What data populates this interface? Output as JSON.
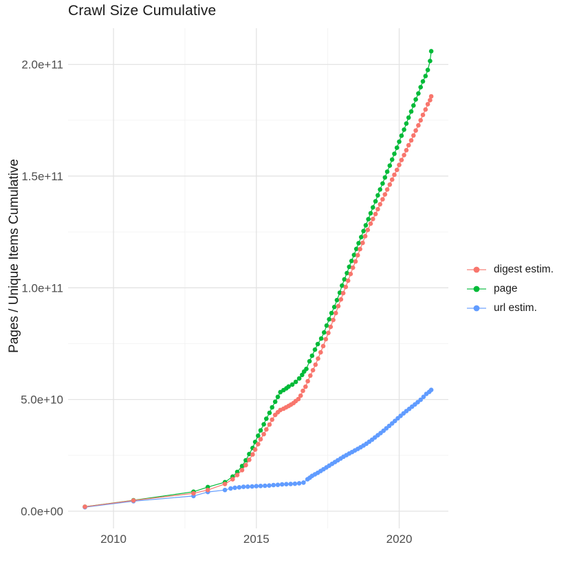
{
  "chart_data": {
    "type": "line",
    "title": "Crawl Size Cumulative",
    "xlabel": "",
    "ylabel": "Pages / Unique Items Cumulative",
    "value_unit": "billions of pages / unique items (1e9)",
    "x_unit": "year",
    "xlim": [
      2008.41,
      2021.72
    ],
    "ylim": [
      -7.7,
      216.2
    ],
    "x_ticks": [
      2010,
      2015,
      2020
    ],
    "x_tick_labels": [
      "2010",
      "2015",
      "2020"
    ],
    "x_minor_ticks": [
      2012.5,
      2017.5
    ],
    "y_ticks": [
      0,
      50,
      100,
      150,
      200
    ],
    "y_tick_labels": [
      "0.0e+00",
      "5.0e+10",
      "1.0e+11",
      "1.5e+11",
      "2.0e+11"
    ],
    "y_minor_ticks": [
      25,
      75,
      125,
      175
    ],
    "grid": true,
    "legend_position": "right",
    "draw_order": [
      1,
      2,
      0
    ],
    "colors": {
      "major_grid": "#e3e3e3",
      "minor_grid": "#f1f1f1",
      "tick_label": "#4d4d4d",
      "text": "#1a1a1a",
      "background": "#ffffff"
    },
    "series": [
      {
        "name": "digest estim.",
        "color": "#F8766D",
        "points": [
          [
            2009.0,
            2.0
          ],
          [
            2010.7,
            4.8
          ],
          [
            2012.8,
            8.0
          ],
          [
            2013.3,
            9.5
          ],
          [
            2013.9,
            12.2
          ],
          [
            2014.17,
            14.3
          ],
          [
            2014.33,
            16.2
          ],
          [
            2014.5,
            18.4
          ],
          [
            2014.63,
            20.6
          ],
          [
            2014.75,
            23.0
          ],
          [
            2014.87,
            25.4
          ],
          [
            2014.96,
            27.6
          ],
          [
            2015.06,
            30.0
          ],
          [
            2015.15,
            32.2
          ],
          [
            2015.26,
            34.5
          ],
          [
            2015.35,
            36.6
          ],
          [
            2015.46,
            38.8
          ],
          [
            2015.55,
            41.0
          ],
          [
            2015.66,
            43.1
          ],
          [
            2015.75,
            44.3
          ],
          [
            2015.84,
            45.3
          ],
          [
            2015.95,
            45.9
          ],
          [
            2016.04,
            46.5
          ],
          [
            2016.13,
            47.1
          ],
          [
            2016.21,
            47.7
          ],
          [
            2016.3,
            48.4
          ],
          [
            2016.38,
            49.3
          ],
          [
            2016.47,
            50.2
          ],
          [
            2016.55,
            51.7
          ],
          [
            2016.63,
            53.9
          ],
          [
            2016.72,
            55.7
          ],
          [
            2016.8,
            58.2
          ],
          [
            2016.89,
            60.7
          ],
          [
            2016.98,
            63.1
          ],
          [
            2017.07,
            65.6
          ],
          [
            2017.16,
            68.3
          ],
          [
            2017.25,
            71.1
          ],
          [
            2017.34,
            73.9
          ],
          [
            2017.43,
            77.0
          ],
          [
            2017.52,
            79.8
          ],
          [
            2017.6,
            82.5
          ],
          [
            2017.69,
            85.6
          ],
          [
            2017.78,
            88.7
          ],
          [
            2017.87,
            91.8
          ],
          [
            2017.96,
            94.8
          ],
          [
            2018.04,
            97.6
          ],
          [
            2018.13,
            100.4
          ],
          [
            2018.21,
            103.2
          ],
          [
            2018.3,
            106.2
          ],
          [
            2018.38,
            109.0
          ],
          [
            2018.47,
            111.8
          ],
          [
            2018.55,
            114.6
          ],
          [
            2018.63,
            117.3
          ],
          [
            2018.72,
            120.1
          ],
          [
            2018.81,
            123.1
          ],
          [
            2018.9,
            125.9
          ],
          [
            2019.0,
            128.7
          ],
          [
            2019.08,
            130.8
          ],
          [
            2019.17,
            133.0
          ],
          [
            2019.25,
            135.2
          ],
          [
            2019.33,
            137.4
          ],
          [
            2019.42,
            139.6
          ],
          [
            2019.5,
            141.8
          ],
          [
            2019.58,
            144.0
          ],
          [
            2019.67,
            146.2
          ],
          [
            2019.75,
            148.4
          ],
          [
            2019.83,
            150.6
          ],
          [
            2019.92,
            152.8
          ],
          [
            2020.0,
            155.0
          ],
          [
            2020.08,
            157.2
          ],
          [
            2020.17,
            159.4
          ],
          [
            2020.25,
            161.6
          ],
          [
            2020.33,
            163.8
          ],
          [
            2020.42,
            166.0
          ],
          [
            2020.5,
            168.2
          ],
          [
            2020.58,
            170.4
          ],
          [
            2020.67,
            172.7
          ],
          [
            2020.75,
            175.0
          ],
          [
            2020.83,
            177.4
          ],
          [
            2020.92,
            179.8
          ],
          [
            2021.0,
            182.2
          ],
          [
            2021.08,
            184.0
          ],
          [
            2021.12,
            185.7
          ]
        ]
      },
      {
        "name": "page",
        "color": "#00BA38",
        "points": [
          [
            2009.0,
            2.0
          ],
          [
            2010.7,
            4.9
          ],
          [
            2012.8,
            8.7
          ],
          [
            2013.3,
            10.8
          ],
          [
            2013.9,
            13.0
          ],
          [
            2014.17,
            15.5
          ],
          [
            2014.33,
            17.6
          ],
          [
            2014.5,
            20.2
          ],
          [
            2014.63,
            22.8
          ],
          [
            2014.75,
            25.6
          ],
          [
            2014.87,
            28.3
          ],
          [
            2014.96,
            31.0
          ],
          [
            2015.06,
            33.8
          ],
          [
            2015.15,
            36.2
          ],
          [
            2015.26,
            38.9
          ],
          [
            2015.35,
            41.4
          ],
          [
            2015.46,
            44.0
          ],
          [
            2015.55,
            46.5
          ],
          [
            2015.66,
            49.0
          ],
          [
            2015.75,
            51.2
          ],
          [
            2015.84,
            53.3
          ],
          [
            2015.95,
            54.2
          ],
          [
            2016.05,
            55.0
          ],
          [
            2016.13,
            55.8
          ],
          [
            2016.26,
            56.7
          ],
          [
            2016.38,
            57.9
          ],
          [
            2016.5,
            59.4
          ],
          [
            2016.6,
            61.0
          ],
          [
            2016.67,
            62.5
          ],
          [
            2016.75,
            63.7
          ],
          [
            2016.86,
            67.1
          ],
          [
            2016.95,
            69.6
          ],
          [
            2017.05,
            72.3
          ],
          [
            2017.15,
            74.8
          ],
          [
            2017.27,
            77.3
          ],
          [
            2017.37,
            80.0
          ],
          [
            2017.46,
            83.1
          ],
          [
            2017.55,
            85.9
          ],
          [
            2017.63,
            88.7
          ],
          [
            2017.73,
            91.4
          ],
          [
            2017.82,
            94.5
          ],
          [
            2017.92,
            97.8
          ],
          [
            2018.0,
            101.0
          ],
          [
            2018.08,
            103.8
          ],
          [
            2018.17,
            106.6
          ],
          [
            2018.25,
            109.4
          ],
          [
            2018.33,
            112.0
          ],
          [
            2018.42,
            114.7
          ],
          [
            2018.5,
            117.4
          ],
          [
            2018.58,
            120.0
          ],
          [
            2018.67,
            122.7
          ],
          [
            2018.75,
            125.4
          ],
          [
            2018.83,
            128.0
          ],
          [
            2018.92,
            130.7
          ],
          [
            2019.0,
            133.4
          ],
          [
            2019.08,
            136.0
          ],
          [
            2019.17,
            138.7
          ],
          [
            2019.25,
            141.4
          ],
          [
            2019.33,
            144.0
          ],
          [
            2019.42,
            146.7
          ],
          [
            2019.5,
            149.4
          ],
          [
            2019.58,
            152.0
          ],
          [
            2019.67,
            154.7
          ],
          [
            2019.75,
            157.4
          ],
          [
            2019.83,
            160.0
          ],
          [
            2019.92,
            162.7
          ],
          [
            2020.0,
            165.4
          ],
          [
            2020.08,
            168.1
          ],
          [
            2020.17,
            170.8
          ],
          [
            2020.25,
            173.5
          ],
          [
            2020.33,
            176.2
          ],
          [
            2020.42,
            178.9
          ],
          [
            2020.5,
            181.6
          ],
          [
            2020.58,
            184.3
          ],
          [
            2020.67,
            187.0
          ],
          [
            2020.75,
            189.8
          ],
          [
            2020.83,
            192.4
          ],
          [
            2020.92,
            194.8
          ],
          [
            2021.0,
            197.5
          ],
          [
            2021.08,
            201.5
          ],
          [
            2021.12,
            205.9
          ]
        ]
      },
      {
        "name": "url estim.",
        "color": "#619CFF",
        "points": [
          [
            2009.0,
            1.8
          ],
          [
            2010.7,
            4.5
          ],
          [
            2012.8,
            6.8
          ],
          [
            2013.3,
            8.6
          ],
          [
            2013.9,
            9.5
          ],
          [
            2014.1,
            10.2
          ],
          [
            2014.25,
            10.5
          ],
          [
            2014.4,
            10.7
          ],
          [
            2014.55,
            10.9
          ],
          [
            2014.7,
            11.0
          ],
          [
            2014.85,
            11.1
          ],
          [
            2015.0,
            11.2
          ],
          [
            2015.15,
            11.3
          ],
          [
            2015.3,
            11.4
          ],
          [
            2015.45,
            11.5
          ],
          [
            2015.6,
            11.7
          ],
          [
            2015.75,
            11.8
          ],
          [
            2015.9,
            12.0
          ],
          [
            2016.05,
            12.1
          ],
          [
            2016.2,
            12.2
          ],
          [
            2016.35,
            12.3
          ],
          [
            2016.5,
            12.5
          ],
          [
            2016.65,
            12.8
          ],
          [
            2016.79,
            14.3
          ],
          [
            2016.87,
            15.0
          ],
          [
            2016.95,
            15.8
          ],
          [
            2017.05,
            16.5
          ],
          [
            2017.15,
            17.2
          ],
          [
            2017.25,
            18.0
          ],
          [
            2017.35,
            18.8
          ],
          [
            2017.45,
            19.6
          ],
          [
            2017.55,
            20.4
          ],
          [
            2017.65,
            21.2
          ],
          [
            2017.75,
            22.0
          ],
          [
            2017.85,
            22.8
          ],
          [
            2017.95,
            23.6
          ],
          [
            2018.05,
            24.4
          ],
          [
            2018.15,
            25.1
          ],
          [
            2018.25,
            25.8
          ],
          [
            2018.35,
            26.5
          ],
          [
            2018.45,
            27.2
          ],
          [
            2018.55,
            27.9
          ],
          [
            2018.65,
            28.6
          ],
          [
            2018.75,
            29.4
          ],
          [
            2018.85,
            30.2
          ],
          [
            2018.95,
            31.1
          ],
          [
            2019.05,
            32.0
          ],
          [
            2019.15,
            33.0
          ],
          [
            2019.25,
            34.0
          ],
          [
            2019.35,
            35.0
          ],
          [
            2019.45,
            36.0
          ],
          [
            2019.55,
            37.1
          ],
          [
            2019.65,
            38.2
          ],
          [
            2019.75,
            39.3
          ],
          [
            2019.85,
            40.4
          ],
          [
            2019.95,
            41.6
          ],
          [
            2020.05,
            42.7
          ],
          [
            2020.15,
            43.8
          ],
          [
            2020.25,
            44.8
          ],
          [
            2020.35,
            45.8
          ],
          [
            2020.45,
            46.8
          ],
          [
            2020.55,
            47.8
          ],
          [
            2020.65,
            48.8
          ],
          [
            2020.75,
            49.9
          ],
          [
            2020.85,
            51.2
          ],
          [
            2020.95,
            52.5
          ],
          [
            2021.05,
            53.4
          ],
          [
            2021.12,
            54.3
          ]
        ]
      }
    ]
  }
}
